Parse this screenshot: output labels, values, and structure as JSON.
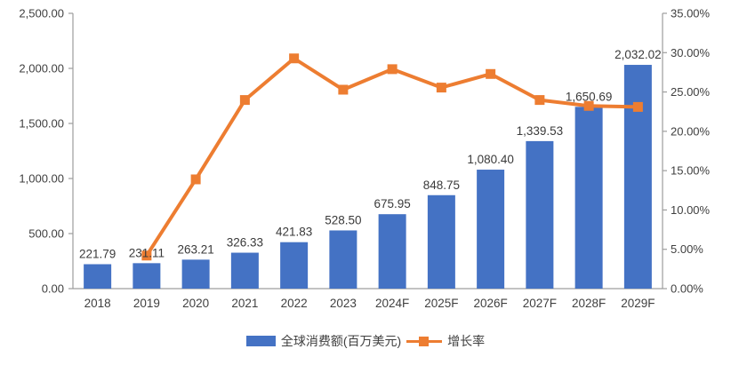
{
  "colors": {
    "bar": "#4472C4",
    "line": "#ED7D31",
    "axis": "#9d9d9d",
    "tick_text": "#404040",
    "value_label": "#3a3a3a",
    "background": "#ffffff"
  },
  "chart_data": {
    "type": "bar",
    "subtype": "bar+line-combo",
    "categories": [
      "2018",
      "2019",
      "2020",
      "2021",
      "2022",
      "2023",
      "2024F",
      "2025F",
      "2026F",
      "2027F",
      "2028F",
      "2029F"
    ],
    "series": [
      {
        "name": "全球消费额(百万美元)",
        "type": "bar",
        "axis": "left",
        "color": "#4472C4",
        "values": [
          221.79,
          231.11,
          263.21,
          326.33,
          421.83,
          528.5,
          675.95,
          848.75,
          1080.4,
          1339.53,
          1650.69,
          2032.02
        ],
        "labels": [
          "221.79",
          "231.11",
          "263.21",
          "326.33",
          "421.83",
          "528.50",
          "675.95",
          "848.75",
          "1,080.40",
          "1,339.53",
          "1,650.69",
          "2,032.02"
        ]
      },
      {
        "name": "增长率",
        "type": "line",
        "axis": "right",
        "color": "#ED7D31",
        "x_indices": [
          1,
          2,
          3,
          4,
          5,
          6,
          7,
          8,
          9,
          10,
          11
        ],
        "values": [
          4.2,
          13.89,
          23.98,
          29.27,
          25.29,
          27.9,
          25.56,
          27.29,
          23.98,
          23.23,
          23.1
        ]
      }
    ],
    "left_axis": {
      "min": 0,
      "max": 2500,
      "step": 500,
      "tick_labels": [
        "0.00",
        "500.00",
        "1,000.00",
        "1,500.00",
        "2,000.00",
        "2,500.00"
      ]
    },
    "right_axis": {
      "min": 0,
      "max": 35,
      "step": 5,
      "tick_labels": [
        "0.00%",
        "5.00%",
        "10.00%",
        "15.00%",
        "20.00%",
        "25.00%",
        "30.00%",
        "35.00%"
      ]
    },
    "grid": false,
    "legend_position": "bottom",
    "legend": [
      {
        "label": "全球消费额(百万美元)",
        "swatch": "bar",
        "color": "#4472C4"
      },
      {
        "label": "增长率",
        "swatch": "line-marker",
        "color": "#ED7D31"
      }
    ],
    "title": ""
  }
}
